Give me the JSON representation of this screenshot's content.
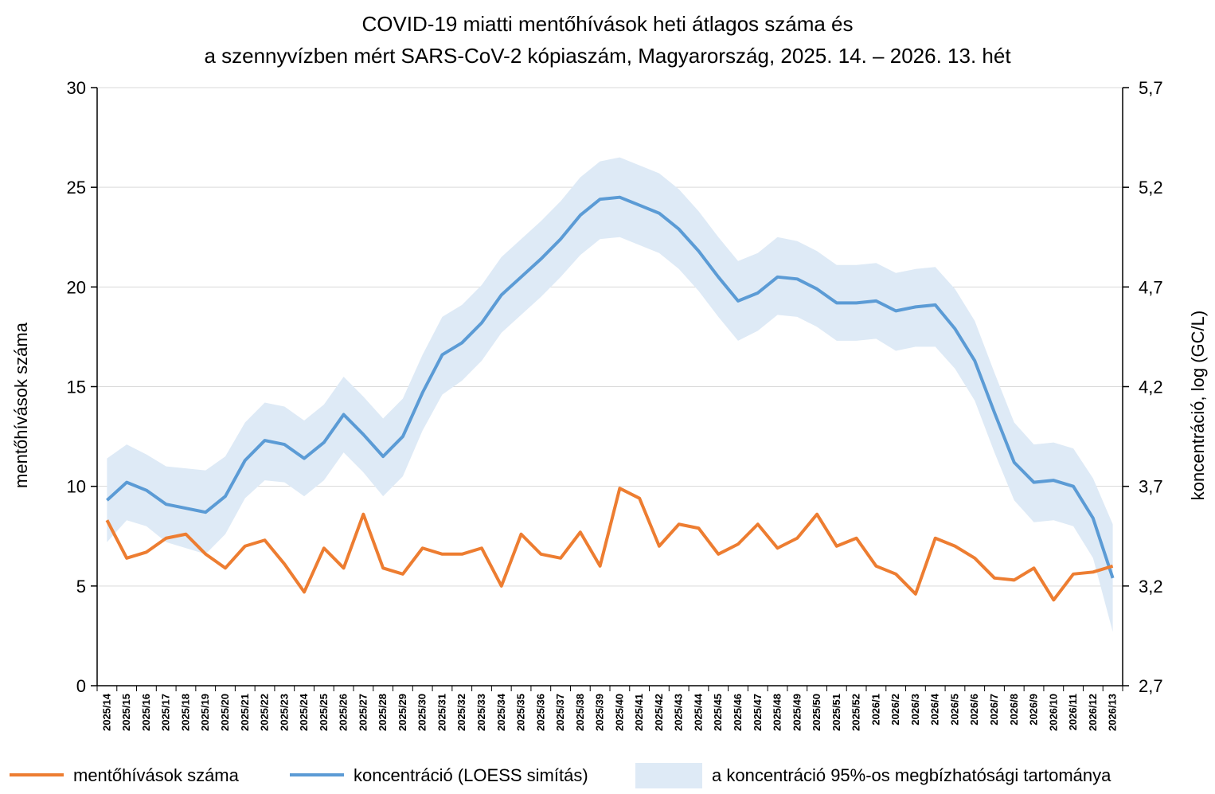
{
  "chart_data": {
    "type": "line",
    "title": "COVID-19 miatti mentőhívások heti átlagos száma és",
    "subtitle": "a szennyvízben mért SARS-CoV-2 kópiaszám, Magyarország, 2025. 14. – 2026. 13. hét",
    "ylabel_left": "mentőhívások száma",
    "ylabel_right": "koncentráció, log (GC/L)",
    "ylim_left": [
      0,
      30
    ],
    "ylim_right": [
      2.7,
      5.7
    ],
    "yticks_left": [
      "0",
      "5",
      "10",
      "15",
      "20",
      "25",
      "30"
    ],
    "yticks_right": [
      "2,7",
      "3,2",
      "3,7",
      "4,2",
      "4,7",
      "5,2",
      "5,7"
    ],
    "grid": true,
    "legend_position": "bottom",
    "categories": [
      "2025/14",
      "2025/15",
      "2025/16",
      "2025/17",
      "2025/18",
      "2025/19",
      "2025/20",
      "2025/21",
      "2025/22",
      "2025/23",
      "2025/24",
      "2025/25",
      "2025/26",
      "2025/27",
      "2025/28",
      "2025/29",
      "2025/30",
      "2025/31",
      "2025/32",
      "2025/33",
      "2025/34",
      "2025/35",
      "2025/36",
      "2025/37",
      "2025/38",
      "2025/39",
      "2025/40",
      "2025/41",
      "2025/42",
      "2025/43",
      "2025/44",
      "2025/45",
      "2025/46",
      "2025/47",
      "2025/48",
      "2025/49",
      "2025/50",
      "2025/51",
      "2025/52",
      "2026/1",
      "2026/2",
      "2026/3",
      "2026/4",
      "2026/5",
      "2026/6",
      "2026/7",
      "2026/8",
      "2026/9",
      "2026/10",
      "2026/11",
      "2026/12",
      "2026/13"
    ],
    "series": [
      {
        "name": "mentőhívások száma",
        "axis": "left",
        "color": "#ED7D31",
        "values": [
          8.3,
          6.4,
          6.7,
          7.4,
          7.6,
          6.6,
          5.9,
          7.0,
          7.3,
          6.1,
          4.7,
          6.9,
          5.9,
          8.6,
          5.9,
          5.6,
          6.9,
          6.6,
          6.6,
          6.9,
          5.0,
          7.6,
          6.6,
          6.4,
          7.7,
          6.0,
          9.9,
          9.4,
          7.0,
          8.1,
          7.9,
          6.6,
          7.1,
          8.1,
          6.9,
          7.4,
          8.6,
          7.0,
          7.4,
          6.0,
          5.6,
          4.6,
          7.4,
          7.0,
          6.4,
          5.4,
          5.3,
          5.9,
          4.3,
          5.6,
          5.7,
          6.0
        ]
      },
      {
        "name": "koncentráció (LOESS simítás)",
        "axis": "right",
        "color": "#5B9BD5",
        "values": [
          3.63,
          3.72,
          3.68,
          3.61,
          3.59,
          3.57,
          3.65,
          3.83,
          3.93,
          3.91,
          3.84,
          3.92,
          4.06,
          3.96,
          3.85,
          3.95,
          4.17,
          4.36,
          4.42,
          4.52,
          4.66,
          4.75,
          4.84,
          4.94,
          5.06,
          5.14,
          5.15,
          5.11,
          5.07,
          4.99,
          4.88,
          4.75,
          4.63,
          4.67,
          4.75,
          4.74,
          4.69,
          4.62,
          4.62,
          4.63,
          4.58,
          4.6,
          4.61,
          4.49,
          4.33,
          4.07,
          3.82,
          3.72,
          3.73,
          3.7,
          3.54,
          3.24
        ]
      },
      {
        "name": "a koncentráció 95%-os megbízhatósági tartománya",
        "axis": "right",
        "color": "#DEEAF6",
        "lower": [
          3.42,
          3.53,
          3.5,
          3.42,
          3.39,
          3.36,
          3.46,
          3.64,
          3.73,
          3.72,
          3.65,
          3.73,
          3.87,
          3.77,
          3.65,
          3.75,
          3.98,
          4.16,
          4.23,
          4.33,
          4.47,
          4.56,
          4.65,
          4.75,
          4.86,
          4.94,
          4.95,
          4.91,
          4.87,
          4.79,
          4.68,
          4.55,
          4.43,
          4.48,
          4.56,
          4.55,
          4.5,
          4.43,
          4.43,
          4.44,
          4.38,
          4.4,
          4.4,
          4.29,
          4.13,
          3.87,
          3.63,
          3.52,
          3.53,
          3.5,
          3.34,
          2.97
        ],
        "upper": [
          3.84,
          3.91,
          3.86,
          3.8,
          3.79,
          3.78,
          3.85,
          4.02,
          4.12,
          4.1,
          4.03,
          4.11,
          4.25,
          4.15,
          4.04,
          4.14,
          4.36,
          4.55,
          4.61,
          4.71,
          4.85,
          4.94,
          5.03,
          5.13,
          5.25,
          5.33,
          5.35,
          5.31,
          5.27,
          5.19,
          5.08,
          4.95,
          4.83,
          4.87,
          4.95,
          4.93,
          4.88,
          4.81,
          4.81,
          4.82,
          4.77,
          4.79,
          4.8,
          4.69,
          4.53,
          4.27,
          4.02,
          3.91,
          3.92,
          3.89,
          3.74,
          3.51
        ]
      }
    ]
  }
}
